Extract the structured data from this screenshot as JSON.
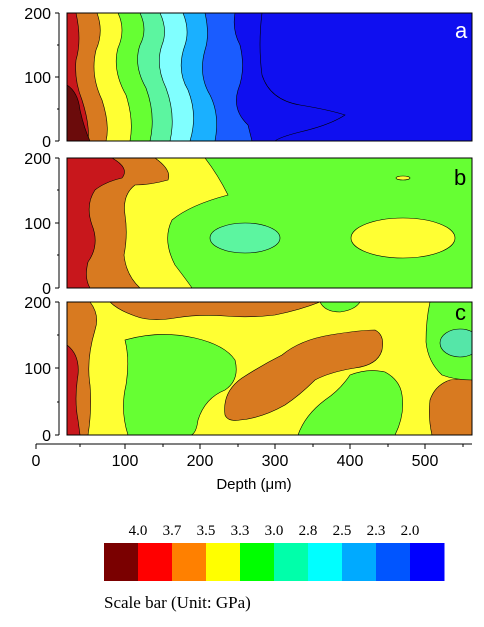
{
  "chart_data": {
    "type": "contour",
    "panels": [
      {
        "label": "a"
      },
      {
        "label": "b"
      },
      {
        "label": "c"
      }
    ],
    "x_axis": {
      "label": "Depth (μm)",
      "range": [
        0,
        560
      ],
      "ticks": [
        0,
        100,
        200,
        300,
        400,
        500
      ],
      "tick_labels": [
        "0",
        "100",
        "200",
        "300",
        "400",
        "500"
      ]
    },
    "y_axis": {
      "range": [
        0,
        200
      ],
      "ticks": [
        0,
        100,
        200
      ],
      "tick_labels": [
        "0",
        "100",
        "200"
      ]
    },
    "color_scale": {
      "title": "Scale bar (Unit: GPa)",
      "unit": "GPa",
      "levels": [
        "4.0",
        "3.7",
        "3.5",
        "3.3",
        "3.0",
        "2.8",
        "2.5",
        "2.3",
        "2.0"
      ],
      "colors": [
        "#7a0000",
        "#ff0000",
        "#ff8000",
        "#ffff00",
        "#00ff00",
        "#00ffaa",
        "#00ffff",
        "#00aaff",
        "#0055ff",
        "#0000ff"
      ]
    },
    "palette": {
      "darkred": "#6b0b0b",
      "red": "#c8171c",
      "orange": "#d87a20",
      "yellow": "#ffff33",
      "green": "#66ff33",
      "mint": "#5cf5a0",
      "cyan": "#80ffff",
      "sky": "#1ab0ff",
      "blue1": "#1a5cff",
      "blue2": "#0f0ff0",
      "teal": "#55e6a8"
    }
  }
}
